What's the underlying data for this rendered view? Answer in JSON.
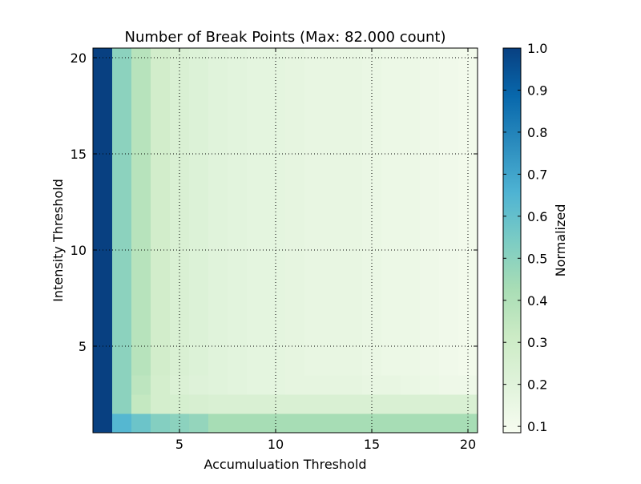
{
  "chart_data": {
    "type": "heatmap",
    "title": "Number of Break Points (Max: 82.000 count)",
    "xlabel": "Accumuluation Threshold",
    "ylabel": "Intensity Threshold",
    "colorbar_label": "Normalized",
    "x_categories": [
      1,
      2,
      3,
      4,
      5,
      6,
      7,
      8,
      9,
      10,
      11,
      12,
      13,
      14,
      15,
      16,
      17,
      18,
      19,
      20
    ],
    "y_categories": [
      1,
      2,
      3,
      4,
      5,
      6,
      7,
      8,
      9,
      10,
      11,
      12,
      13,
      14,
      15,
      16,
      17,
      18,
      19,
      20
    ],
    "xticks": [
      5,
      10,
      15,
      20
    ],
    "yticks": [
      5,
      10,
      15,
      20
    ],
    "xlim": [
      0.5,
      20.5
    ],
    "ylim": [
      0.5,
      20.5
    ],
    "colorbar_ticks": [
      "0.1",
      "0.2",
      "0.3",
      "0.4",
      "0.5",
      "0.6",
      "0.7",
      "0.8",
      "0.9",
      "1.0"
    ],
    "vmin": 0.085,
    "vmax": 1.0,
    "grid": true,
    "colormap": "GnBu",
    "row_y1": [
      1.0,
      0.64,
      0.58,
      0.52,
      0.5,
      0.48,
      0.43,
      0.43,
      0.43,
      0.43,
      0.43,
      0.43,
      0.43,
      0.43,
      0.43,
      0.43,
      0.43,
      0.43,
      0.43,
      0.43
    ],
    "row_y2": [
      1.0,
      0.5,
      0.34,
      0.27,
      0.26,
      0.25,
      0.24,
      0.24,
      0.24,
      0.24,
      0.24,
      0.24,
      0.24,
      0.24,
      0.24,
      0.24,
      0.24,
      0.24,
      0.24,
      0.24
    ],
    "row_y3": [
      1.0,
      0.5,
      0.36,
      0.27,
      0.23,
      0.21,
      0.2,
      0.19,
      0.18,
      0.18,
      0.17,
      0.17,
      0.17,
      0.17,
      0.16,
      0.16,
      0.15,
      0.14,
      0.13,
      0.13
    ],
    "rows_y4_to_y20": [
      1.0,
      0.5,
      0.38,
      0.28,
      0.24,
      0.22,
      0.2,
      0.19,
      0.18,
      0.18,
      0.17,
      0.16,
      0.16,
      0.16,
      0.15,
      0.14,
      0.14,
      0.13,
      0.12,
      0.11
    ]
  }
}
